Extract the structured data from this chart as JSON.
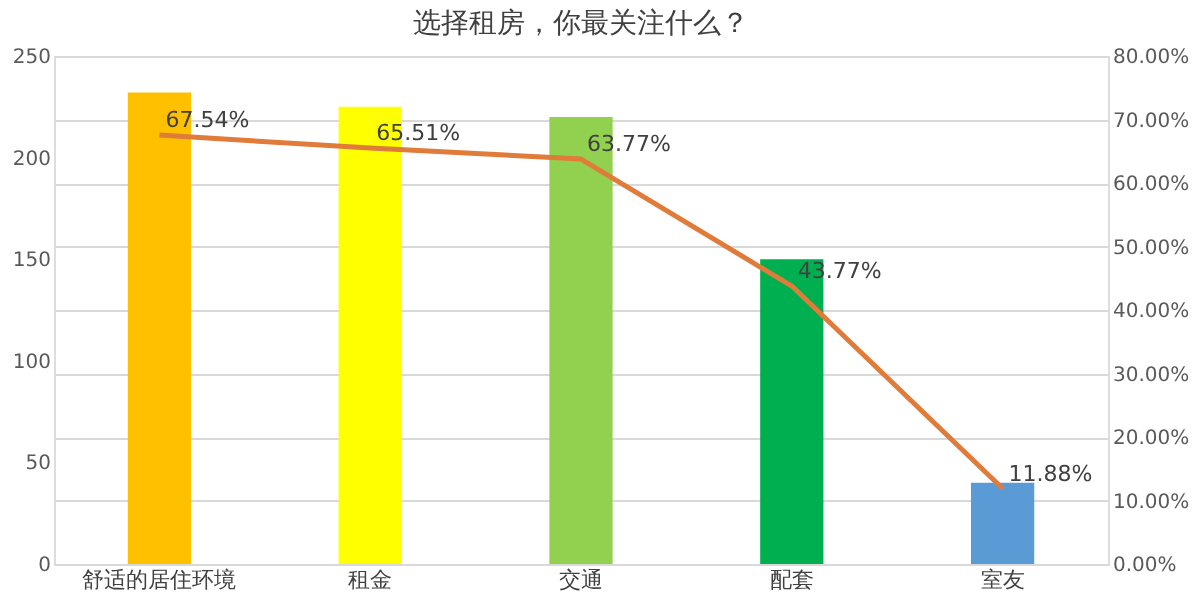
{
  "chart_data": {
    "type": "bar",
    "title": "选择租房，你最关注什么？",
    "categories": [
      "舒适的居住环境",
      "租金",
      "交通",
      "配套",
      "室友"
    ],
    "series": [
      {
        "colors": [
          "#ffc000",
          "#ffff00",
          "#92d050",
          "#00b050",
          "#5b9bd5"
        ],
        "values": [
          232,
          225,
          220,
          150,
          40
        ]
      },
      {
        "type": "line",
        "axis": "y2",
        "color": "#e07b39",
        "values": [
          67.54,
          65.51,
          63.77,
          43.77,
          11.88
        ],
        "value_labels": [
          "67.54%",
          "65.51%",
          "63.77%",
          "43.77%",
          "11.88%"
        ]
      }
    ],
    "ylim": [
      0,
      250
    ],
    "yticks": [
      0,
      50,
      100,
      150,
      200,
      250
    ],
    "y2lim": [
      0,
      80
    ],
    "y2ticks": [
      {
        "value": 0,
        "label": "0.00%"
      },
      {
        "value": 10,
        "label": "10.00%"
      },
      {
        "value": 20,
        "label": "20.00%"
      },
      {
        "value": 30,
        "label": "30.00%"
      },
      {
        "value": 40,
        "label": "40.00%"
      },
      {
        "value": 50,
        "label": "50.00%"
      },
      {
        "value": 60,
        "label": "60.00%"
      },
      {
        "value": 70,
        "label": "70.00%"
      },
      {
        "value": 80,
        "label": "80.00%"
      }
    ],
    "grid": "y"
  }
}
